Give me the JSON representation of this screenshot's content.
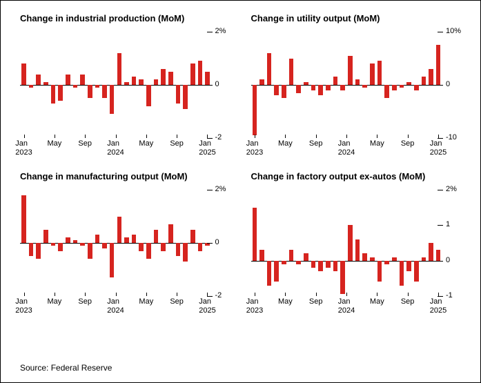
{
  "source_text": "Source: Federal Reserve",
  "colors": {
    "bar": "#d6241f",
    "axis": "#000000",
    "background": "#ffffff"
  },
  "x_axis": {
    "ticks": [
      {
        "pos": 0.02,
        "label_top": "Jan",
        "label_bottom": "2023"
      },
      {
        "pos": 0.18,
        "label_top": "May",
        "label_bottom": ""
      },
      {
        "pos": 0.34,
        "label_top": "Sep",
        "label_bottom": ""
      },
      {
        "pos": 0.5,
        "label_top": "Jan",
        "label_bottom": "2024"
      },
      {
        "pos": 0.66,
        "label_top": "May",
        "label_bottom": ""
      },
      {
        "pos": 0.82,
        "label_top": "Sep",
        "label_bottom": ""
      },
      {
        "pos": 0.98,
        "label_top": "Jan",
        "label_bottom": "2025"
      }
    ]
  },
  "panels": [
    {
      "title": "Change in industrial production (MoM)",
      "ylim": [
        -2,
        2
      ],
      "yticks": [
        {
          "v": 2,
          "label": "2%"
        },
        {
          "v": 0,
          "label": "0"
        },
        {
          "v": -2,
          "label": "-2"
        }
      ],
      "values": [
        0.8,
        -0.1,
        0.4,
        0.1,
        -0.7,
        -0.6,
        0.4,
        -0.1,
        0.4,
        -0.5,
        -0.1,
        -0.5,
        -1.1,
        1.2,
        0.1,
        0.3,
        0.2,
        -0.8,
        0.2,
        0.6,
        0.5,
        -0.7,
        -0.9,
        0.8,
        0.9,
        0.5
      ]
    },
    {
      "title": "Change in utility output (MoM)",
      "ylim": [
        -10,
        10
      ],
      "yticks": [
        {
          "v": 10,
          "label": "10%"
        },
        {
          "v": 0,
          "label": "0"
        },
        {
          "v": -10,
          "label": "-10"
        }
      ],
      "values": [
        -9.5,
        1.0,
        6.0,
        -2.0,
        -2.5,
        5.0,
        -1.5,
        0.5,
        -1.0,
        -2.0,
        -1.0,
        1.5,
        -1.0,
        5.5,
        1.0,
        -0.5,
        4.0,
        4.5,
        -2.5,
        -1.0,
        -0.5,
        0.5,
        -1.0,
        1.5,
        3.0,
        7.5
      ]
    },
    {
      "title": "Change in manufacturing output (MoM)",
      "ylim": [
        -2,
        2
      ],
      "yticks": [
        {
          "v": 2,
          "label": "2%"
        },
        {
          "v": 0,
          "label": "0"
        },
        {
          "v": -2,
          "label": "-2"
        }
      ],
      "values": [
        1.8,
        -0.5,
        -0.6,
        0.5,
        -0.1,
        -0.3,
        0.2,
        0.1,
        -0.1,
        -0.6,
        0.3,
        -0.2,
        -1.3,
        1.0,
        0.2,
        0.3,
        -0.3,
        -0.6,
        0.5,
        -0.3,
        0.7,
        -0.5,
        -0.7,
        0.5,
        -0.3,
        -0.1
      ]
    },
    {
      "title": "Change in factory output ex-autos (MoM)",
      "ylim": [
        -1,
        2
      ],
      "yticks": [
        {
          "v": 2,
          "label": "2%"
        },
        {
          "v": 1,
          "label": "1"
        },
        {
          "v": 0,
          "label": "0"
        },
        {
          "v": -1,
          "label": "-1"
        }
      ],
      "values": [
        1.5,
        0.3,
        -0.7,
        -0.6,
        -0.1,
        0.3,
        -0.1,
        0.2,
        -0.2,
        -0.3,
        -0.2,
        -0.3,
        -0.95,
        1.0,
        0.6,
        0.2,
        0.1,
        -0.6,
        -0.1,
        0.1,
        -0.7,
        -0.3,
        -0.6,
        0.1,
        0.5,
        0.3
      ]
    }
  ]
}
